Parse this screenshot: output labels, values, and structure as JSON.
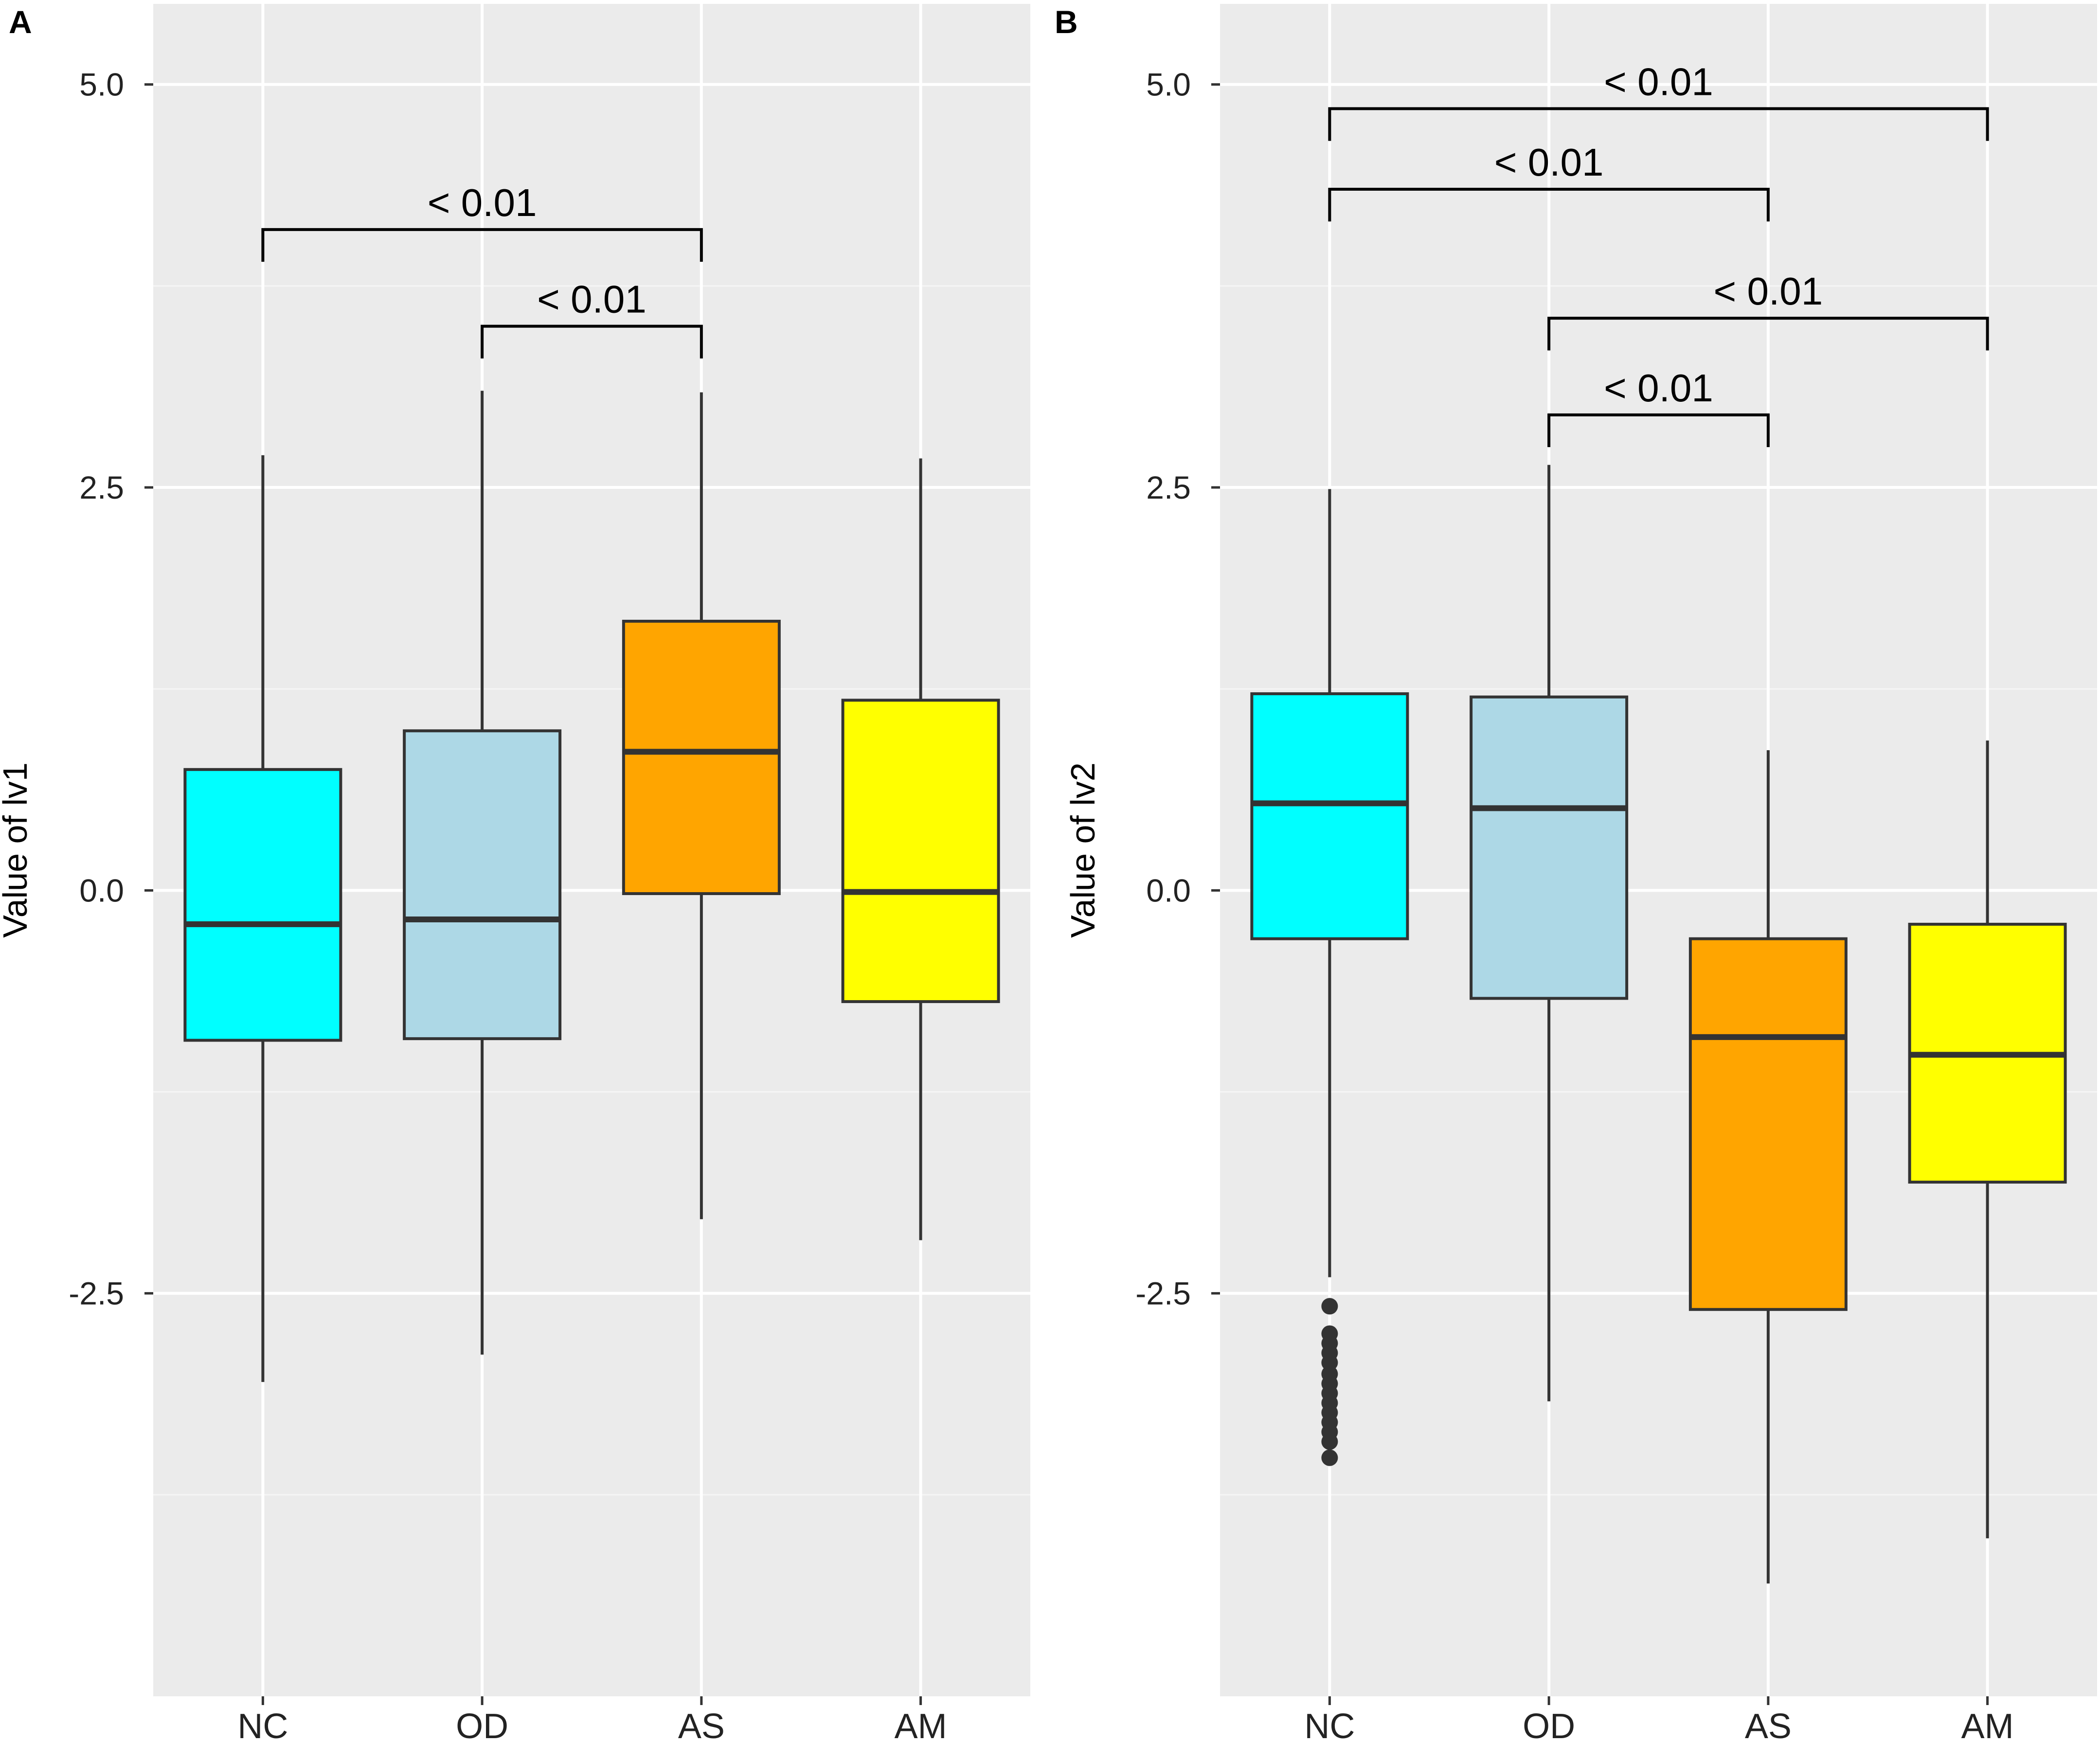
{
  "chart_data": [
    {
      "panel_label": "A",
      "type": "boxplot",
      "ylabel": "Value of lv1",
      "ylim": [
        -5,
        5.5
      ],
      "yticks": [
        5.0,
        2.5,
        0.0,
        -2.5
      ],
      "ytick_labels": [
        "5.0",
        "2.5",
        "0.0",
        "-2.5"
      ],
      "categories": [
        "NC",
        "OD",
        "AS",
        "AM"
      ],
      "boxes": [
        {
          "name": "NC",
          "color": "#00ffff",
          "whisker_low": -3.05,
          "q1": -0.93,
          "median": -0.21,
          "q3": 0.75,
          "whisker_high": 2.7,
          "outliers": []
        },
        {
          "name": "OD",
          "color": "#add8e6",
          "whisker_low": -2.88,
          "q1": -0.92,
          "median": -0.18,
          "q3": 0.99,
          "whisker_high": 3.1,
          "outliers": []
        },
        {
          "name": "AS",
          "color": "#ffa500",
          "whisker_low": -2.04,
          "q1": -0.02,
          "median": 0.86,
          "q3": 1.67,
          "whisker_high": 3.09,
          "outliers": []
        },
        {
          "name": "AM",
          "color": "#ffff00",
          "whisker_low": -2.17,
          "q1": -0.69,
          "median": -0.01,
          "q3": 1.18,
          "whisker_high": 2.68,
          "outliers": []
        }
      ],
      "comparisons": [
        {
          "from": "NC",
          "to": "AS",
          "label": "< 0.01",
          "y": 4.1,
          "tip": 3.9
        },
        {
          "from": "OD",
          "to": "AS",
          "label": "< 0.01",
          "y": 3.5,
          "tip": 3.3
        }
      ]
    },
    {
      "panel_label": "B",
      "type": "boxplot",
      "ylabel": "Value of lv2",
      "ylim": [
        -5,
        5.5
      ],
      "yticks": [
        5.0,
        2.5,
        0.0,
        -2.5
      ],
      "ytick_labels": [
        "5.0",
        "2.5",
        "0.0",
        "-2.5"
      ],
      "categories": [
        "NC",
        "OD",
        "AS",
        "AM"
      ],
      "boxes": [
        {
          "name": "NC",
          "color": "#00ffff",
          "whisker_low": -2.4,
          "q1": -0.3,
          "median": 0.54,
          "q3": 1.22,
          "whisker_high": 2.49,
          "outliers": [
            -2.58,
            -2.75,
            -2.81,
            -2.87,
            -2.93,
            -3.0,
            -3.06,
            -3.12,
            -3.18,
            -3.24,
            -3.3,
            -3.36,
            -3.42,
            -3.52
          ]
        },
        {
          "name": "OD",
          "color": "#add8e6",
          "whisker_low": -3.17,
          "q1": -0.67,
          "median": 0.51,
          "q3": 1.2,
          "whisker_high": 2.64,
          "outliers": []
        },
        {
          "name": "AS",
          "color": "#ffa500",
          "whisker_low": -4.3,
          "q1": -2.6,
          "median": -0.91,
          "q3": -0.3,
          "whisker_high": 0.87,
          "outliers": []
        },
        {
          "name": "AM",
          "color": "#ffff00",
          "whisker_low": -4.02,
          "q1": -1.81,
          "median": -1.02,
          "q3": -0.21,
          "whisker_high": 0.93,
          "outliers": []
        }
      ],
      "comparisons": [
        {
          "from": "NC",
          "to": "AM",
          "label": "< 0.01",
          "y": 4.85,
          "tip": 4.65
        },
        {
          "from": "NC",
          "to": "AS",
          "label": "< 0.01",
          "y": 4.35,
          "tip": 4.15
        },
        {
          "from": "OD",
          "to": "AM",
          "label": "< 0.01",
          "y": 3.55,
          "tip": 3.35
        },
        {
          "from": "OD",
          "to": "AS",
          "label": "< 0.01",
          "y": 2.95,
          "tip": 2.75
        }
      ]
    }
  ],
  "style": {
    "panel_background": "#ebebeb",
    "major_grid": "#ffffff",
    "minor_grid": "#f5f5f5",
    "box_outline": "#333333",
    "median_line": "#333333",
    "whisker_color": "#333333",
    "bracket_color": "#000000",
    "outlier_color": "#333333"
  }
}
